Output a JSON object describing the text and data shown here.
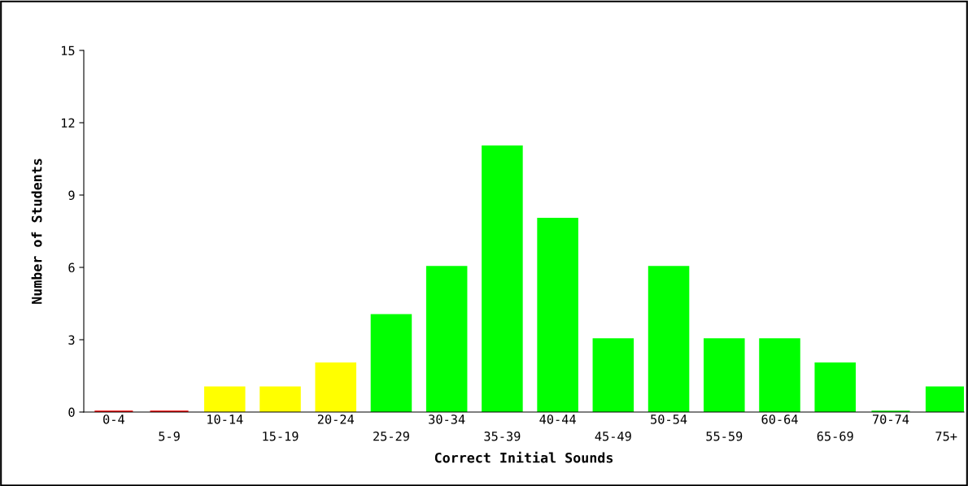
{
  "chart_data": {
    "type": "bar",
    "xlabel": "Correct Initial Sounds",
    "ylabel": "Number of Students",
    "categories": [
      "0-4",
      "5-9",
      "10-14",
      "15-19",
      "20-24",
      "25-29",
      "30-34",
      "35-39",
      "40-44",
      "45-49",
      "50-54",
      "55-59",
      "60-64",
      "65-69",
      "70-74",
      "75+"
    ],
    "values": [
      0,
      0,
      1,
      1,
      2,
      4,
      6,
      11,
      8,
      3,
      6,
      3,
      3,
      2,
      0,
      1
    ],
    "colors": [
      "#ff0000",
      "#ff0000",
      "#ffff00",
      "#ffff00",
      "#ffff00",
      "#00ff00",
      "#00ff00",
      "#00ff00",
      "#00ff00",
      "#00ff00",
      "#00ff00",
      "#00ff00",
      "#00ff00",
      "#00ff00",
      "#00ff00",
      "#00ff00"
    ],
    "ylim": [
      0,
      15
    ],
    "yticks": [
      0,
      3,
      6,
      9,
      12,
      15
    ],
    "grid": false,
    "legend": false
  }
}
